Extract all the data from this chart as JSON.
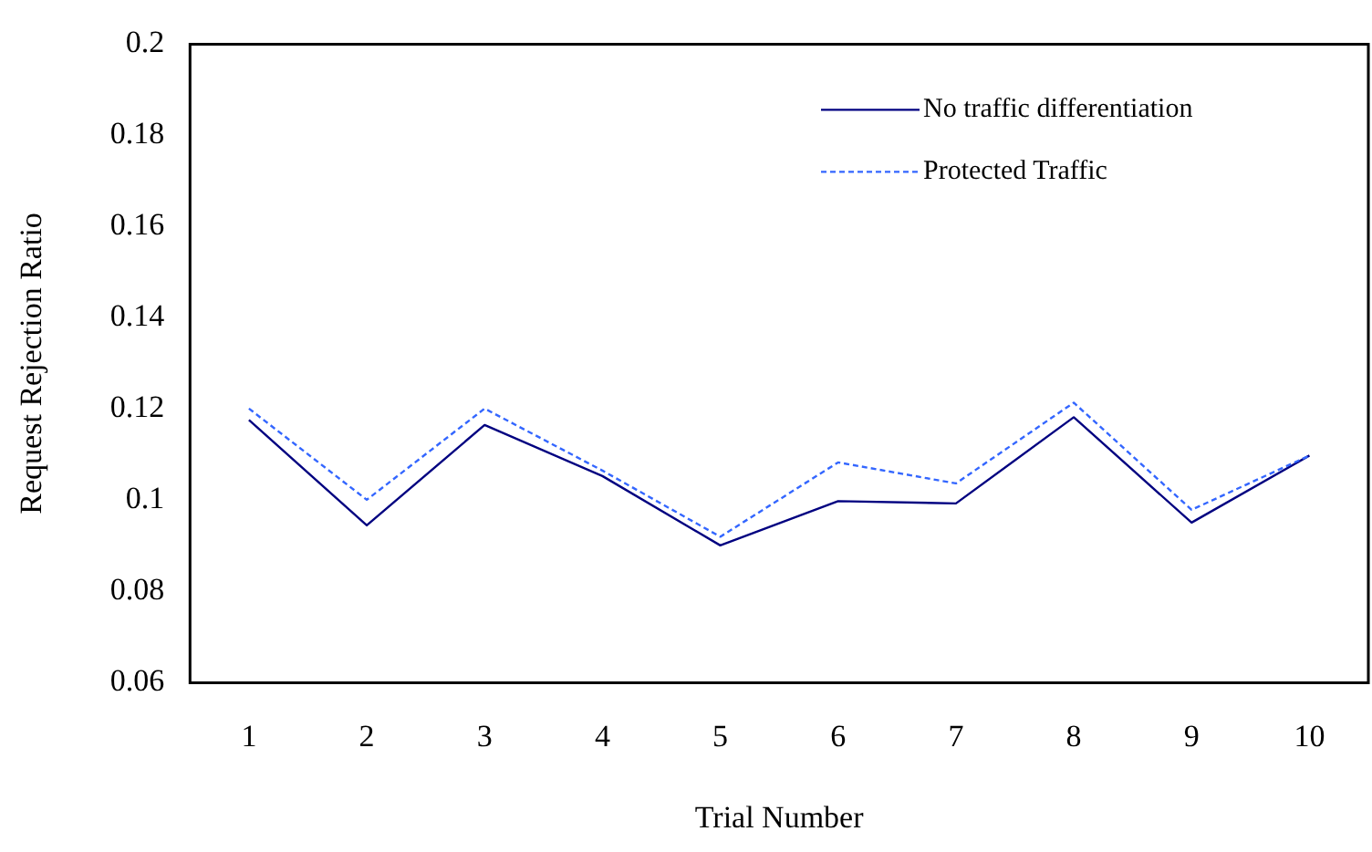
{
  "chart_data": {
    "type": "line",
    "xlabel": "Trial Number",
    "ylabel": "Request Rejection Ratio",
    "categories": [
      "1",
      "2",
      "3",
      "4",
      "5",
      "6",
      "7",
      "8",
      "9",
      "10"
    ],
    "series": [
      {
        "name": "No traffic differentiation",
        "color": "#000080",
        "line_style": "solid",
        "values": [
          0.1176,
          0.0945,
          0.1165,
          0.1053,
          0.0901,
          0.0998,
          0.0993,
          0.1182,
          0.0951,
          0.1098
        ]
      },
      {
        "name": "Protected Traffic",
        "color": "#3366ff",
        "line_style": "dashed",
        "values": [
          0.1201,
          0.1001,
          0.1201,
          0.1065,
          0.092,
          0.1083,
          0.1037,
          0.1214,
          0.0979,
          0.1098
        ]
      }
    ],
    "ylim": [
      0.06,
      0.2
    ],
    "yticks": [
      0.06,
      0.08,
      0.1,
      0.12,
      0.14,
      0.16,
      0.18,
      0.2
    ],
    "grid": false,
    "legend": "top right",
    "marker": "none"
  }
}
